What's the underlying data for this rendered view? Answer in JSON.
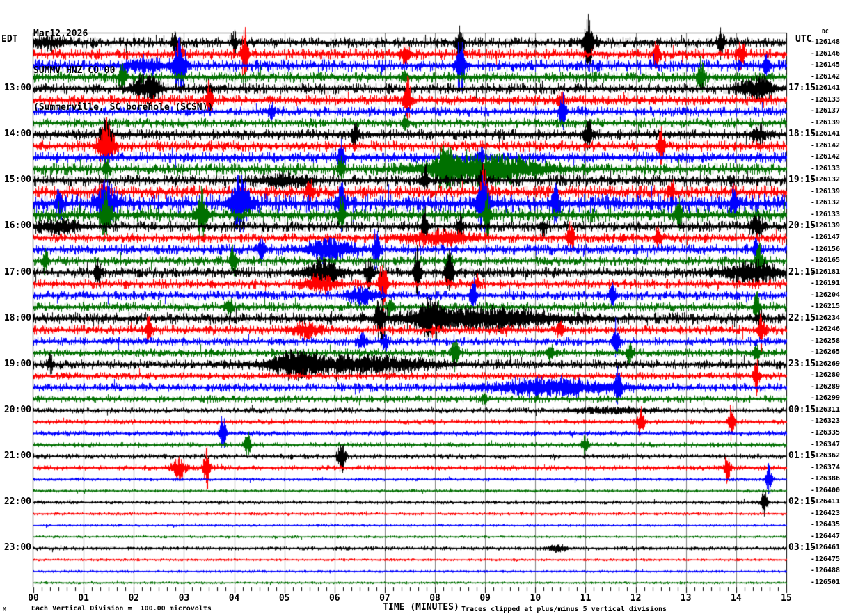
{
  "header": {
    "date": "Mar12,2026",
    "station": "SUMMV HNZ CO 00",
    "location": "(Summerville, SC borehole (SCSN))"
  },
  "axes": {
    "left_label": "EDT",
    "right_label": "UTC",
    "dc_label": "DC",
    "x_axis_label": "TIME (MINUTES)",
    "x_ticks": [
      "00",
      "01",
      "02",
      "03",
      "04",
      "05",
      "06",
      "07",
      "08",
      "09",
      "10",
      "11",
      "12",
      "13",
      "14",
      "15"
    ]
  },
  "footer": {
    "left": "Each Vertical Division =  100.00 microvolts",
    "right": "Traces clipped at plus/minus 5 vertical divisions",
    "watermark": "M"
  },
  "chart_data": {
    "type": "line",
    "subtype": "helicorder-seismogram",
    "title": "SUMMV HNZ CO 00 (Summerville, SC borehole (SCSN)) Mar12,2026",
    "xlabel": "TIME (MINUTES)",
    "x_range_minutes": [
      0,
      15
    ],
    "minutes_per_row": 15,
    "grid": true,
    "grid_color": "#808080",
    "clip_divisions": 5,
    "microvolts_per_division": "100.00",
    "trace_colors": {
      "black": "#000000",
      "red": "#ff0000",
      "blue": "#0000ff",
      "green": "#007000"
    },
    "color_cycle": [
      "black",
      "red",
      "blue",
      "green"
    ],
    "rows": [
      {
        "edt": "",
        "utc": "",
        "offset": "-126148",
        "color": "black",
        "noise": 4.5
      },
      {
        "edt": "",
        "utc": "",
        "offset": "-126146",
        "color": "red",
        "noise": 4.5
      },
      {
        "edt": "",
        "utc": "",
        "offset": "-126145",
        "color": "blue",
        "noise": 5.0
      },
      {
        "edt": "",
        "utc": "",
        "offset": "-126142",
        "color": "green",
        "noise": 4.5
      },
      {
        "edt": "13:00",
        "utc": "17:15",
        "offset": "-126141",
        "color": "black",
        "noise": 4.5
      },
      {
        "edt": "",
        "utc": "",
        "offset": "-126133",
        "color": "red",
        "noise": 4.2
      },
      {
        "edt": "",
        "utc": "",
        "offset": "-126137",
        "color": "blue",
        "noise": 4.0
      },
      {
        "edt": "",
        "utc": "",
        "offset": "-126139",
        "color": "green",
        "noise": 4.0
      },
      {
        "edt": "14:00",
        "utc": "18:15",
        "offset": "-126141",
        "color": "black",
        "noise": 4.5
      },
      {
        "edt": "",
        "utc": "",
        "offset": "-126142",
        "color": "red",
        "noise": 4.5
      },
      {
        "edt": "",
        "utc": "",
        "offset": "-126142",
        "color": "blue",
        "noise": 4.5
      },
      {
        "edt": "",
        "utc": "",
        "offset": "-126133",
        "color": "green",
        "noise": 5.0
      },
      {
        "edt": "15:00",
        "utc": "19:15",
        "offset": "-126132",
        "color": "black",
        "noise": 5.0
      },
      {
        "edt": "",
        "utc": "",
        "offset": "-126139",
        "color": "red",
        "noise": 5.5
      },
      {
        "edt": "",
        "utc": "",
        "offset": "-126132",
        "color": "blue",
        "noise": 8.0
      },
      {
        "edt": "",
        "utc": "",
        "offset": "-126133",
        "color": "green",
        "noise": 6.0
      },
      {
        "edt": "16:00",
        "utc": "20:15",
        "offset": "-126139",
        "color": "black",
        "noise": 4.5
      },
      {
        "edt": "",
        "utc": "",
        "offset": "-126147",
        "color": "red",
        "noise": 4.0
      },
      {
        "edt": "",
        "utc": "",
        "offset": "-126156",
        "color": "blue",
        "noise": 4.5
      },
      {
        "edt": "",
        "utc": "",
        "offset": "-126165",
        "color": "green",
        "noise": 4.0
      },
      {
        "edt": "17:00",
        "utc": "21:15",
        "offset": "-126181",
        "color": "black",
        "noise": 4.5
      },
      {
        "edt": "",
        "utc": "",
        "offset": "-126191",
        "color": "red",
        "noise": 4.0
      },
      {
        "edt": "",
        "utc": "",
        "offset": "-126204",
        "color": "blue",
        "noise": 4.0
      },
      {
        "edt": "",
        "utc": "",
        "offset": "-126215",
        "color": "green",
        "noise": 4.0
      },
      {
        "edt": "18:00",
        "utc": "22:15",
        "offset": "-126234",
        "color": "black",
        "noise": 5.0
      },
      {
        "edt": "",
        "utc": "",
        "offset": "-126246",
        "color": "red",
        "noise": 4.0
      },
      {
        "edt": "",
        "utc": "",
        "offset": "-126258",
        "color": "blue",
        "noise": 3.5
      },
      {
        "edt": "",
        "utc": "",
        "offset": "-126265",
        "color": "green",
        "noise": 3.5
      },
      {
        "edt": "19:00",
        "utc": "23:15",
        "offset": "-126269",
        "color": "black",
        "noise": 4.0
      },
      {
        "edt": "",
        "utc": "",
        "offset": "-126280",
        "color": "red",
        "noise": 3.0
      },
      {
        "edt": "",
        "utc": "",
        "offset": "-126289",
        "color": "blue",
        "noise": 3.5
      },
      {
        "edt": "",
        "utc": "",
        "offset": "-126299",
        "color": "green",
        "noise": 3.0
      },
      {
        "edt": "20:00",
        "utc": "00:15",
        "offset": "-126311",
        "color": "black",
        "noise": 2.2
      },
      {
        "edt": "",
        "utc": "",
        "offset": "-126323",
        "color": "red",
        "noise": 2.0
      },
      {
        "edt": "",
        "utc": "",
        "offset": "-126335",
        "color": "blue",
        "noise": 2.0
      },
      {
        "edt": "",
        "utc": "",
        "offset": "-126347",
        "color": "green",
        "noise": 2.0
      },
      {
        "edt": "21:00",
        "utc": "01:15",
        "offset": "-126362",
        "color": "black",
        "noise": 2.0
      },
      {
        "edt": "",
        "utc": "",
        "offset": "-126374",
        "color": "red",
        "noise": 2.0
      },
      {
        "edt": "",
        "utc": "",
        "offset": "-126386",
        "color": "blue",
        "noise": 1.3
      },
      {
        "edt": "",
        "utc": "",
        "offset": "-126400",
        "color": "green",
        "noise": 1.2
      },
      {
        "edt": "22:00",
        "utc": "02:15",
        "offset": "-126411",
        "color": "black",
        "noise": 1.5
      },
      {
        "edt": "",
        "utc": "",
        "offset": "-126423",
        "color": "red",
        "noise": 1.2
      },
      {
        "edt": "",
        "utc": "",
        "offset": "-126435",
        "color": "blue",
        "noise": 1.0
      },
      {
        "edt": "",
        "utc": "",
        "offset": "-126447",
        "color": "green",
        "noise": 1.0
      },
      {
        "edt": "23:00",
        "utc": "03:15",
        "offset": "-126461",
        "color": "black",
        "noise": 1.5
      },
      {
        "edt": "",
        "utc": "",
        "offset": "-126475",
        "color": "red",
        "noise": 1.0
      },
      {
        "edt": "",
        "utc": "",
        "offset": "-126488",
        "color": "blue",
        "noise": 1.0
      },
      {
        "edt": "",
        "utc": "",
        "offset": "-126501",
        "color": "green",
        "noise": 1.0
      }
    ],
    "events": [
      [
        0,
        0.3,
        0.3,
        7
      ],
      [
        0,
        2.8,
        0.05,
        16
      ],
      [
        0,
        4.0,
        0.04,
        18
      ],
      [
        0,
        8.5,
        0.05,
        26
      ],
      [
        0,
        11.05,
        0.07,
        41
      ],
      [
        0,
        13.7,
        0.05,
        22
      ],
      [
        1,
        2.9,
        0.04,
        30
      ],
      [
        1,
        4.2,
        0.05,
        38
      ],
      [
        1,
        7.4,
        0.08,
        14
      ],
      [
        1,
        12.4,
        0.05,
        20
      ],
      [
        1,
        14.1,
        0.05,
        24
      ],
      [
        2,
        2.2,
        0.3,
        10
      ],
      [
        2,
        2.9,
        0.1,
        41
      ],
      [
        2,
        8.5,
        0.07,
        41
      ],
      [
        2,
        14.6,
        0.05,
        20
      ],
      [
        3,
        1.76,
        0.05,
        28
      ],
      [
        3,
        7.4,
        0.05,
        10
      ],
      [
        3,
        13.3,
        0.05,
        28
      ],
      [
        4,
        2.25,
        0.2,
        20
      ],
      [
        4,
        3.5,
        0.05,
        14
      ],
      [
        4,
        14.4,
        0.25,
        18
      ],
      [
        5,
        3.5,
        0.05,
        28
      ],
      [
        5,
        7.45,
        0.05,
        32
      ],
      [
        5,
        10.5,
        0.06,
        14
      ],
      [
        6,
        4.74,
        0.05,
        12
      ],
      [
        6,
        10.54,
        0.05,
        28
      ],
      [
        7,
        7.4,
        0.05,
        10
      ],
      [
        8,
        1.44,
        0.08,
        28
      ],
      [
        8,
        6.4,
        0.06,
        18
      ],
      [
        8,
        11.05,
        0.06,
        22
      ],
      [
        8,
        14.45,
        0.1,
        14
      ],
      [
        9,
        1.44,
        0.12,
        41
      ],
      [
        9,
        12.5,
        0.05,
        28
      ],
      [
        10,
        6.13,
        0.05,
        28
      ],
      [
        10,
        8.9,
        0.06,
        18
      ],
      [
        11,
        1.44,
        0.05,
        14
      ],
      [
        11,
        6.13,
        0.05,
        18
      ],
      [
        11,
        8.2,
        0.15,
        28
      ],
      [
        11,
        9.0,
        0.9,
        22
      ],
      [
        12,
        5.0,
        0.4,
        8
      ],
      [
        12,
        7.8,
        0.06,
        18
      ],
      [
        12,
        8.94,
        0.05,
        28
      ],
      [
        13,
        1.39,
        0.06,
        18
      ],
      [
        13,
        5.5,
        0.06,
        14
      ],
      [
        13,
        8.97,
        0.06,
        40
      ],
      [
        13,
        12.7,
        0.05,
        18
      ],
      [
        14,
        0.51,
        0.05,
        24
      ],
      [
        14,
        1.45,
        0.12,
        41
      ],
      [
        14,
        4.1,
        0.15,
        41
      ],
      [
        14,
        6.13,
        0.05,
        41
      ],
      [
        14,
        8.95,
        0.1,
        41
      ],
      [
        14,
        10.4,
        0.06,
        28
      ],
      [
        14,
        13.96,
        0.05,
        24
      ],
      [
        15,
        1.43,
        0.08,
        34
      ],
      [
        15,
        3.35,
        0.08,
        40
      ],
      [
        15,
        6.13,
        0.05,
        28
      ],
      [
        15,
        9.04,
        0.05,
        34
      ],
      [
        15,
        12.85,
        0.05,
        22
      ],
      [
        16,
        0.5,
        0.35,
        9
      ],
      [
        16,
        7.8,
        0.05,
        24
      ],
      [
        16,
        8.5,
        0.05,
        18
      ],
      [
        16,
        10.15,
        0.05,
        14
      ],
      [
        16,
        14.4,
        0.1,
        18
      ],
      [
        17,
        8.1,
        0.5,
        10
      ],
      [
        17,
        10.7,
        0.05,
        24
      ],
      [
        17,
        12.44,
        0.05,
        14
      ],
      [
        18,
        4.53,
        0.05,
        18
      ],
      [
        18,
        5.9,
        0.35,
        16
      ],
      [
        18,
        6.82,
        0.05,
        36
      ],
      [
        18,
        14.4,
        0.05,
        22
      ],
      [
        19,
        0.24,
        0.04,
        22
      ],
      [
        19,
        3.98,
        0.05,
        24
      ],
      [
        19,
        8.28,
        0.05,
        14
      ],
      [
        19,
        14.45,
        0.05,
        28
      ],
      [
        20,
        1.28,
        0.05,
        22
      ],
      [
        20,
        5.78,
        0.25,
        20
      ],
      [
        20,
        6.68,
        0.06,
        24
      ],
      [
        20,
        7.65,
        0.05,
        38
      ],
      [
        20,
        8.28,
        0.06,
        32
      ],
      [
        20,
        14.3,
        0.4,
        16
      ],
      [
        21,
        5.7,
        0.25,
        13
      ],
      [
        21,
        6.96,
        0.06,
        40
      ],
      [
        21,
        8.83,
        0.05,
        14
      ],
      [
        22,
        6.54,
        0.2,
        13
      ],
      [
        22,
        8.76,
        0.05,
        24
      ],
      [
        22,
        11.53,
        0.05,
        18
      ],
      [
        23,
        3.9,
        0.05,
        18
      ],
      [
        23,
        7.1,
        0.05,
        11
      ],
      [
        23,
        14.4,
        0.05,
        22
      ],
      [
        24,
        6.9,
        0.06,
        41
      ],
      [
        24,
        7.9,
        0.2,
        20
      ],
      [
        24,
        8.9,
        1.1,
        15
      ],
      [
        24,
        14.45,
        0.05,
        11
      ],
      [
        25,
        2.3,
        0.05,
        22
      ],
      [
        25,
        5.43,
        0.2,
        11
      ],
      [
        25,
        10.5,
        0.05,
        16
      ],
      [
        25,
        14.5,
        0.05,
        28
      ],
      [
        26,
        6.54,
        0.08,
        12
      ],
      [
        26,
        7.0,
        0.06,
        12
      ],
      [
        26,
        11.6,
        0.05,
        38
      ],
      [
        27,
        8.4,
        0.05,
        26
      ],
      [
        27,
        10.3,
        0.05,
        13
      ],
      [
        27,
        11.88,
        0.05,
        18
      ],
      [
        27,
        14.4,
        0.05,
        16
      ],
      [
        28,
        0.33,
        0.05,
        13
      ],
      [
        28,
        5.2,
        0.3,
        17
      ],
      [
        28,
        6.3,
        1.2,
        13
      ],
      [
        29,
        14.4,
        0.05,
        26
      ],
      [
        30,
        10.3,
        1.0,
        12
      ],
      [
        30,
        11.64,
        0.05,
        30
      ],
      [
        31,
        8.97,
        0.05,
        9
      ],
      [
        32,
        11.5,
        0.7,
        4
      ],
      [
        33,
        12.1,
        0.05,
        26
      ],
      [
        33,
        13.9,
        0.05,
        28
      ],
      [
        34,
        3.77,
        0.05,
        28
      ],
      [
        35,
        4.26,
        0.05,
        20
      ],
      [
        35,
        10.98,
        0.05,
        16
      ],
      [
        36,
        6.13,
        0.06,
        26
      ],
      [
        37,
        2.9,
        0.12,
        16
      ],
      [
        37,
        3.45,
        0.05,
        40
      ],
      [
        37,
        13.82,
        0.05,
        22
      ],
      [
        38,
        14.65,
        0.05,
        26
      ],
      [
        40,
        14.56,
        0.05,
        22
      ],
      [
        44,
        10.43,
        0.15,
        5
      ]
    ]
  }
}
